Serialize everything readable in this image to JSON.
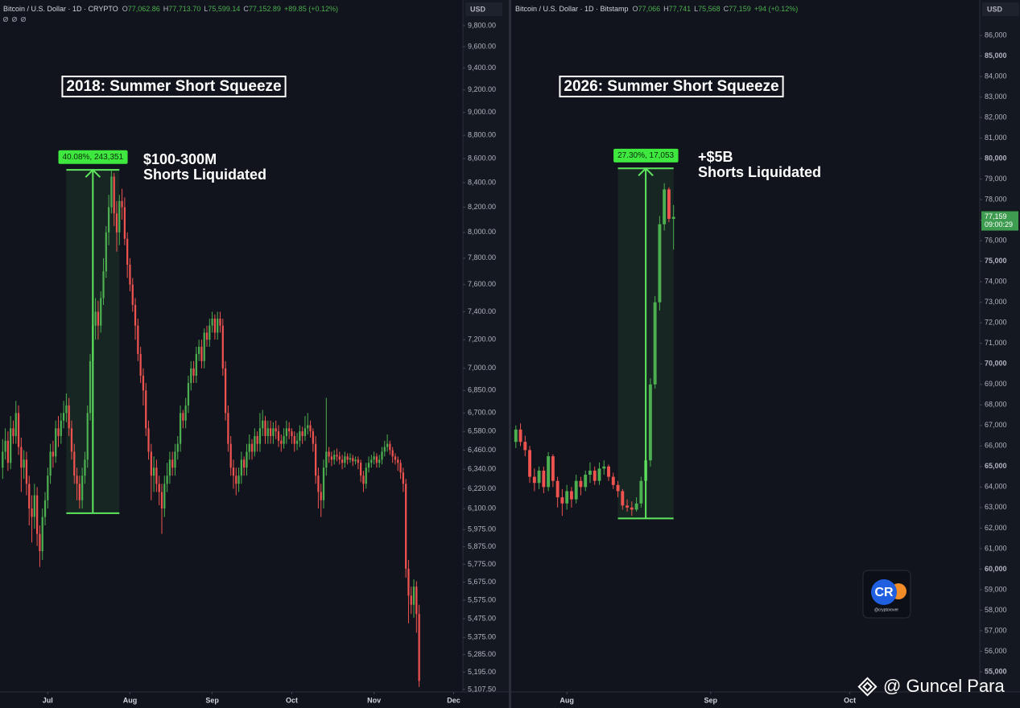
{
  "chart_data": [
    {
      "type": "candlestick",
      "header": {
        "title": "Bitcoin / U.S. Dollar · 1D · CRYPTO",
        "fields": [
          {
            "key": "O",
            "value": "77,062.86"
          },
          {
            "key": "H",
            "value": "77,713.70"
          },
          {
            "key": "L",
            "value": "75,599.14"
          },
          {
            "key": "C",
            "value": "77,152.89"
          }
        ],
        "change": "+89.85 (+0.12%)"
      },
      "currency": "USD",
      "title": "2018: Summer Short Squeeze",
      "annotation": [
        "$100-300M",
        "Shorts Liquidated"
      ],
      "measure": {
        "label": "40.08%, 243,351",
        "from": 6072,
        "to": 8506,
        "start": 24,
        "end": 44
      },
      "log": true,
      "up_color": "#4caf50",
      "down_color": "#ef5350",
      "xlim": [
        -1,
        173.5
      ],
      "xticks": [
        {
          "value": 17,
          "label": "Jul"
        },
        {
          "value": 48,
          "label": "Aug"
        },
        {
          "value": 79,
          "label": "Sep"
        },
        {
          "value": 109,
          "label": "Oct"
        },
        {
          "value": 140,
          "label": "Nov"
        },
        {
          "value": 170,
          "label": "Dec"
        }
      ],
      "ylim": [
        5095,
        10050
      ],
      "yticks": [
        {
          "value": 9800,
          "label": "9,800.00"
        },
        {
          "value": 9600,
          "label": "9,600.00"
        },
        {
          "value": 9400,
          "label": "9,400.00"
        },
        {
          "value": 9200,
          "label": "9,200.00"
        },
        {
          "value": 9000,
          "label": "9,000.00"
        },
        {
          "value": 8800,
          "label": "8,800.00"
        },
        {
          "value": 8600,
          "label": "8,600.00"
        },
        {
          "value": 8400,
          "label": "8,400.00"
        },
        {
          "value": 8200,
          "label": "8,200.00"
        },
        {
          "value": 8000,
          "label": "8,000.00"
        },
        {
          "value": 7800,
          "label": "7,800.00"
        },
        {
          "value": 7600,
          "label": "7,600.00"
        },
        {
          "value": 7400,
          "label": "7,400.00"
        },
        {
          "value": 7200,
          "label": "7,200.00"
        },
        {
          "value": 7000,
          "label": "7,000.00"
        },
        {
          "value": 6850,
          "label": "6,850.00"
        },
        {
          "value": 6700,
          "label": "6,700.00"
        },
        {
          "value": 6580,
          "label": "6,580.00"
        },
        {
          "value": 6460,
          "label": "6,460.00"
        },
        {
          "value": 6340,
          "label": "6,340.00"
        },
        {
          "value": 6220,
          "label": "6,220.00"
        },
        {
          "value": 6100,
          "label": "6,100.00"
        },
        {
          "value": 5975,
          "label": "5,975.00"
        },
        {
          "value": 5875,
          "label": "5,875.00"
        },
        {
          "value": 5775,
          "label": "5,775.00"
        },
        {
          "value": 5675,
          "label": "5,675.00"
        },
        {
          "value": 5575,
          "label": "5,575.00"
        },
        {
          "value": 5475,
          "label": "5,475.00"
        },
        {
          "value": 5375,
          "label": "5,375.00"
        },
        {
          "value": 5285,
          "label": "5,285.00"
        },
        {
          "value": 5195,
          "label": "5,195.00"
        },
        {
          "value": 5107.5,
          "label": "5,107.50"
        }
      ],
      "open": [
        6350,
        6450,
        6520,
        6380,
        6600,
        6550,
        6700,
        6480,
        6350,
        6400,
        6250,
        6100,
        6050,
        6180,
        5950,
        5850,
        6050,
        6150,
        6300,
        6450,
        6420,
        6600,
        6550,
        6650,
        6700,
        6750,
        6600,
        6450,
        6300,
        6250,
        6150,
        6300,
        6400,
        6700,
        7050,
        7300,
        7400,
        7300,
        7500,
        7700,
        8000,
        8200,
        8450,
        8150,
        8000,
        8250,
        8200,
        7950,
        7750,
        7600,
        7450,
        7300,
        7100,
        6950,
        6850,
        6600,
        6450,
        6300,
        6350,
        6250,
        6200,
        6100,
        6250,
        6300,
        6400,
        6350,
        6450,
        6500,
        6700,
        6650,
        6750,
        6900,
        7000,
        6950,
        7100,
        7150,
        7050,
        7250,
        7200,
        7300,
        7350,
        7250,
        7350,
        7300,
        7000,
        6700,
        6500,
        6350,
        6300,
        6250,
        6300,
        6400,
        6350,
        6450,
        6500,
        6450,
        6550,
        6500,
        6600,
        6650,
        6550,
        6600,
        6550,
        6600,
        6580,
        6520,
        6500,
        6550,
        6600,
        6580,
        6550,
        6500,
        6520,
        6580,
        6550,
        6600,
        6620,
        6580,
        6500,
        6300,
        6200,
        6150,
        6350,
        6450,
        6420,
        6400,
        6430,
        6420,
        6400,
        6380,
        6420,
        6400,
        6410,
        6390,
        6400,
        6380,
        6300,
        6250,
        6350,
        6380,
        6400,
        6420,
        6380,
        6400,
        6450,
        6480,
        6500,
        6460,
        6420,
        6400,
        6380,
        6320,
        6250,
        5750,
        5600,
        5550,
        5650,
        5500
      ],
      "high": [
        6530,
        6600,
        6580,
        6680,
        6650,
        6780,
        6750,
        6540,
        6460,
        6450,
        6300,
        6180,
        6250,
        6230,
        6000,
        6100,
        6200,
        6350,
        6500,
        6520,
        6650,
        6680,
        6700,
        6780,
        6830,
        6800,
        6650,
        6500,
        6350,
        6300,
        6350,
        6450,
        6750,
        7100,
        7350,
        7500,
        7480,
        7550,
        7800,
        8050,
        8300,
        8500,
        8480,
        8250,
        8300,
        8350,
        8280,
        8000,
        7800,
        7650,
        7500,
        7350,
        7150,
        7000,
        6900,
        6650,
        6500,
        6420,
        6400,
        6300,
        6250,
        6300,
        6380,
        6450,
        6450,
        6500,
        6550,
        6750,
        6720,
        6800,
        6950,
        7050,
        7050,
        7150,
        7200,
        7200,
        7280,
        7300,
        7350,
        7400,
        7380,
        7400,
        7400,
        7350,
        7050,
        6750,
        6550,
        6400,
        6350,
        6350,
        6450,
        6420,
        6500,
        6560,
        6530,
        6600,
        6580,
        6700,
        6720,
        6680,
        6650,
        6650,
        6640,
        6650,
        6620,
        6560,
        6600,
        6650,
        6640,
        6600,
        6580,
        6570,
        6620,
        6610,
        6680,
        6700,
        6650,
        6600,
        6550,
        6350,
        6250,
        6400,
        6800,
        6480,
        6450,
        6460,
        6470,
        6450,
        6430,
        6450,
        6440,
        6440,
        6430,
        6420,
        6420,
        6400,
        6330,
        6380,
        6420,
        6430,
        6450,
        6440,
        6430,
        6480,
        6520,
        6560,
        6520,
        6480,
        6440,
        6420,
        6400,
        6350,
        6280,
        5800,
        5650,
        5690,
        5680,
        5550
      ],
      "low": [
        6280,
        6400,
        6330,
        6340,
        6500,
        6500,
        6430,
        6200,
        6280,
        6180,
        6000,
        5900,
        5980,
        5880,
        5760,
        5800,
        6000,
        6100,
        6250,
        6350,
        6380,
        6480,
        6500,
        6600,
        6640,
        6550,
        6400,
        6250,
        6150,
        6100,
        6100,
        6250,
        6350,
        6650,
        7000,
        7200,
        7200,
        7250,
        7450,
        7650,
        7900,
        8150,
        8050,
        7850,
        7900,
        8100,
        7900,
        7650,
        7550,
        7400,
        7200,
        7050,
        6900,
        6750,
        6550,
        6400,
        6150,
        6200,
        6200,
        6120,
        5950,
        6050,
        6200,
        6250,
        6300,
        6300,
        6400,
        6450,
        6600,
        6600,
        6700,
        6850,
        6900,
        6900,
        7050,
        7000,
        7000,
        7150,
        7150,
        7250,
        7200,
        7200,
        7250,
        6950,
        6650,
        6450,
        6300,
        6220,
        6180,
        6200,
        6250,
        6300,
        6300,
        6400,
        6400,
        6420,
        6450,
        6450,
        6550,
        6500,
        6500,
        6500,
        6500,
        6530,
        6480,
        6450,
        6470,
        6500,
        6530,
        6500,
        6450,
        6460,
        6480,
        6500,
        6520,
        6560,
        6540,
        6450,
        6250,
        6100,
        6050,
        6100,
        6300,
        6380,
        6360,
        6370,
        6390,
        6370,
        6340,
        6350,
        6370,
        6380,
        6360,
        6370,
        6340,
        6260,
        6200,
        6220,
        6320,
        6350,
        6370,
        6350,
        6350,
        6370,
        6420,
        6450,
        6430,
        6380,
        6370,
        6330,
        6280,
        6200,
        5700,
        5450,
        5500,
        5480,
        5400,
        5120
      ],
      "close": [
        6450,
        6520,
        6380,
        6600,
        6550,
        6700,
        6480,
        6350,
        6400,
        6250,
        6100,
        6050,
        6180,
        5950,
        5850,
        6050,
        6150,
        6300,
        6450,
        6420,
        6600,
        6550,
        6650,
        6700,
        6750,
        6600,
        6450,
        6300,
        6250,
        6150,
        6300,
        6400,
        6700,
        7050,
        7300,
        7400,
        7300,
        7500,
        7700,
        8000,
        8200,
        8450,
        8150,
        8000,
        8250,
        8200,
        7950,
        7750,
        7600,
        7450,
        7300,
        7100,
        6950,
        6850,
        6600,
        6450,
        6300,
        6350,
        6250,
        6200,
        6100,
        6250,
        6300,
        6400,
        6350,
        6450,
        6500,
        6700,
        6650,
        6750,
        6900,
        7000,
        6950,
        7100,
        7150,
        7050,
        7250,
        7200,
        7300,
        7350,
        7250,
        7350,
        7300,
        7000,
        6700,
        6500,
        6350,
        6300,
        6250,
        6300,
        6400,
        6350,
        6450,
        6500,
        6450,
        6550,
        6500,
        6600,
        6650,
        6550,
        6600,
        6550,
        6600,
        6580,
        6520,
        6500,
        6550,
        6600,
        6580,
        6550,
        6500,
        6520,
        6580,
        6550,
        6600,
        6620,
        6580,
        6500,
        6300,
        6200,
        6150,
        6350,
        6450,
        6420,
        6400,
        6430,
        6420,
        6400,
        6380,
        6420,
        6400,
        6410,
        6390,
        6400,
        6380,
        6300,
        6250,
        6350,
        6380,
        6400,
        6420,
        6380,
        6400,
        6450,
        6480,
        6500,
        6460,
        6420,
        6400,
        6380,
        6320,
        6250,
        5750,
        5600,
        5550,
        5650,
        5500,
        5150
      ]
    },
    {
      "type": "candlestick",
      "header": {
        "title": "Bitcoin / U.S. Dollar · 1D · Bitstamp",
        "fields": [
          {
            "key": "O",
            "value": "77,066"
          },
          {
            "key": "H",
            "value": "77,741"
          },
          {
            "key": "L",
            "value": "75,568"
          },
          {
            "key": "C",
            "value": "77,159"
          }
        ],
        "change": "+94 (+0.12%)"
      },
      "currency": "USD",
      "title": "2026: Summer Short Squeeze",
      "annotation": [
        "+$5B",
        "Shorts Liquidated"
      ],
      "measure": {
        "label": "27.30%, 17,053",
        "from": 62470,
        "to": 79523,
        "start": 22,
        "end": 34
      },
      "price_label": {
        "value": 77159,
        "label": "77,159",
        "countdown": "09:00:29"
      },
      "log": false,
      "up_color": "#4caf50",
      "down_color": "#ef5350",
      "xlim": [
        -1,
        100
      ],
      "xticks": [
        {
          "value": 11,
          "label": "Aug"
        },
        {
          "value": 42,
          "label": "Sep"
        },
        {
          "value": 72,
          "label": "Oct"
        }
      ],
      "ylim": [
        54020,
        87725
      ],
      "yticks": [
        {
          "value": 86000,
          "label": "86,000"
        },
        {
          "value": 85000,
          "label": "85,000"
        },
        {
          "value": 84000,
          "label": "84,000"
        },
        {
          "value": 83000,
          "label": "83,000"
        },
        {
          "value": 82000,
          "label": "82,000"
        },
        {
          "value": 81000,
          "label": "81,000"
        },
        {
          "value": 80000,
          "label": "80,000"
        },
        {
          "value": 79000,
          "label": "79,000"
        },
        {
          "value": 78000,
          "label": "78,000"
        },
        {
          "value": 77000,
          "label": "77,000"
        },
        {
          "value": 76000,
          "label": "76,000"
        },
        {
          "value": 75000,
          "label": "75,000"
        },
        {
          "value": 74000,
          "label": "74,000"
        },
        {
          "value": 73000,
          "label": "73,000"
        },
        {
          "value": 72000,
          "label": "72,000"
        },
        {
          "value": 71000,
          "label": "71,000"
        },
        {
          "value": 70000,
          "label": "70,000"
        },
        {
          "value": 69000,
          "label": "69,000"
        },
        {
          "value": 68000,
          "label": "68,000"
        },
        {
          "value": 67000,
          "label": "67,000"
        },
        {
          "value": 66000,
          "label": "66,000"
        },
        {
          "value": 65000,
          "label": "65,000"
        },
        {
          "value": 64000,
          "label": "64,000"
        },
        {
          "value": 63000,
          "label": "63,000"
        },
        {
          "value": 62000,
          "label": "62,000"
        },
        {
          "value": 61000,
          "label": "61,000"
        },
        {
          "value": 60000,
          "label": "60,000"
        },
        {
          "value": 59000,
          "label": "59,000"
        },
        {
          "value": 58000,
          "label": "58,000"
        },
        {
          "value": 57000,
          "label": "57,000"
        },
        {
          "value": 56000,
          "label": "56,000"
        },
        {
          "value": 55000,
          "label": "55,000"
        }
      ],
      "open": [
        66200,
        66800,
        66200,
        65800,
        64500,
        64200,
        64800,
        64000,
        65500,
        64300,
        63500,
        63200,
        63800,
        63400,
        64300,
        64000,
        64600,
        64800,
        64300,
        64900,
        65000,
        64500,
        64100,
        63800,
        63100,
        63000,
        62900,
        63200,
        64300,
        65300,
        69000,
        73000,
        76800,
        78500,
        77066
      ],
      "high": [
        67000,
        67100,
        66500,
        66000,
        64900,
        65000,
        65000,
        65700,
        65600,
        64500,
        63900,
        64100,
        64000,
        64600,
        64500,
        64800,
        65200,
        65000,
        65200,
        65300,
        65100,
        64700,
        64300,
        63900,
        63400,
        63300,
        63500,
        64500,
        65500,
        69300,
        73300,
        77200,
        78800,
        78600,
        77741
      ],
      "low": [
        65900,
        66000,
        65500,
        64200,
        63800,
        63900,
        63700,
        63800,
        64000,
        63000,
        62600,
        62900,
        63000,
        63200,
        63600,
        63800,
        64200,
        64100,
        64100,
        64600,
        64300,
        63900,
        63500,
        62900,
        62800,
        62600,
        62800,
        63000,
        64100,
        65000,
        68800,
        72600,
        76500,
        76900,
        75568
      ],
      "close": [
        66800,
        66200,
        65800,
        64500,
        64200,
        64800,
        64000,
        65500,
        64300,
        63500,
        63200,
        63800,
        63400,
        64300,
        64000,
        64600,
        64800,
        64300,
        64900,
        65000,
        64500,
        64100,
        63800,
        63100,
        63000,
        62900,
        63200,
        64300,
        65300,
        69000,
        73000,
        76800,
        78500,
        77066,
        77159
      ]
    }
  ],
  "logo": {
    "text": "CR",
    "handle": "@cryptorover"
  },
  "watermark": "@ Guncel Para"
}
